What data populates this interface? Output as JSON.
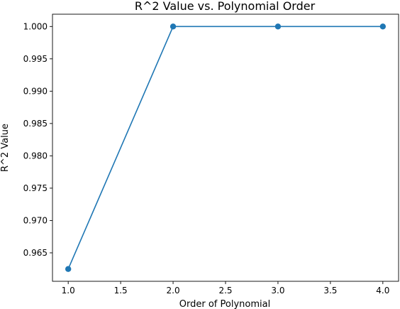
{
  "chart_data": {
    "type": "line",
    "title": "R^2 Value vs. Polynomial Order",
    "xlabel": "Order of Polynomial",
    "ylabel": "R^2 Value",
    "x": [
      1.0,
      2.0,
      3.0,
      4.0
    ],
    "series": [
      {
        "values": [
          0.9625,
          1.0,
          1.0,
          1.0
        ]
      }
    ],
    "xlim": [
      0.85,
      4.15
    ],
    "ylim": [
      0.9606,
      1.0019
    ],
    "xticks": [
      "1.0",
      "1.5",
      "2.0",
      "2.5",
      "3.0",
      "3.5",
      "4.0"
    ],
    "yticks": [
      "0.965",
      "0.970",
      "0.975",
      "0.980",
      "0.985",
      "0.990",
      "0.995",
      "1.000"
    ],
    "marker": "circle",
    "grid": false,
    "colors": {
      "series": "#1f77b4",
      "axes": "#000000"
    }
  }
}
